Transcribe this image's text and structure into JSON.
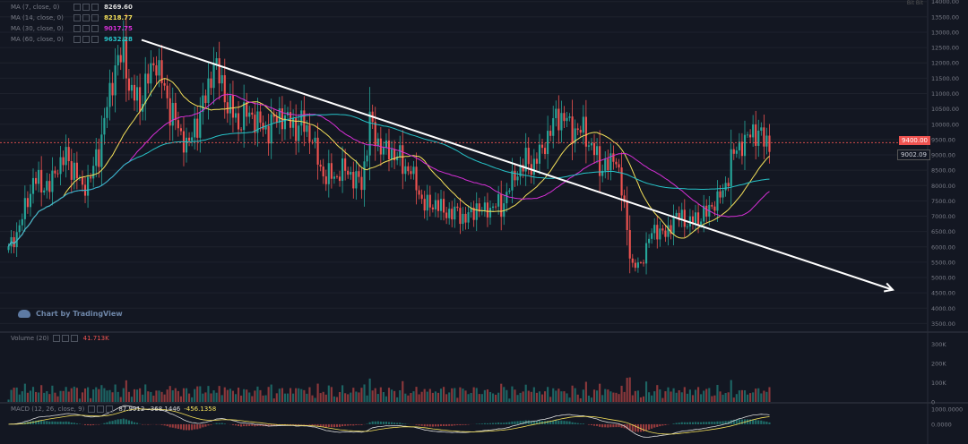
{
  "legend": {
    "ma7": {
      "label": "MA (7, close, 0)",
      "value": "8269.60",
      "color": "#dcdcdc"
    },
    "ma14": {
      "label": "MA (14, close, 0)",
      "value": "8218.77",
      "color": "#f5e15a"
    },
    "ma30": {
      "label": "MA (30, close, 0)",
      "value": "9017.75",
      "color": "#d62fd6"
    },
    "ma60": {
      "label": "MA (60, close, 0)",
      "value": "9632.28",
      "color": "#27c4c9"
    }
  },
  "volume_legend": {
    "label": "Volume (20)",
    "value": "41.713K",
    "color": "#ef5350"
  },
  "macd_legend": {
    "label": "MACD (12, 26, close, 9)",
    "v1": "87.9912",
    "v2": "-368.1446",
    "v3": "-456.1358"
  },
  "tv_label": "Chart by TradingView",
  "price_tags": {
    "current": "9400.00",
    "line": "9002.09"
  },
  "top_right": "Bit Bit",
  "colors": {
    "up": "#26a69a",
    "down": "#ef5350",
    "background": "#131722"
  },
  "chart_data": [
    {
      "type": "candlestick",
      "title": "",
      "y_ticks": [
        "3500.00",
        "4000.00",
        "4500.00",
        "5000.00",
        "5500.00",
        "6000.00",
        "6500.00",
        "7000.00",
        "7500.00",
        "8000.00",
        "8500.00",
        "9000.00",
        "9500.00",
        "10000.00",
        "10500.00",
        "11000.00",
        "11500.00",
        "12000.00",
        "12500.00",
        "13000.00",
        "13500.00",
        "14000.00"
      ],
      "ylim": [
        3250,
        14050
      ],
      "reference_price": 9400,
      "reference_price_2": 9002.09,
      "close_approx": [
        5900,
        6400,
        7300,
        8200,
        8100,
        7900,
        8600,
        8900,
        8500,
        8000,
        8300,
        9100,
        10500,
        11800,
        12400,
        11000,
        10800,
        11500,
        12000,
        11000,
        10300,
        9700,
        9400,
        10100,
        10800,
        11900,
        11300,
        10500,
        10100,
        10400,
        10100,
        9800,
        9900,
        10400,
        10200,
        9900,
        10000,
        9400,
        8500,
        8300,
        8400,
        8600,
        8200,
        8000,
        10000,
        9400,
        9200,
        9100,
        8700,
        8400,
        7700,
        7300,
        7500,
        7200,
        7100,
        7000,
        6900,
        7300,
        7200,
        7400,
        7300,
        7900,
        8400,
        8800,
        8700,
        9300,
        9800,
        10300,
        10000,
        9700,
        9900,
        9300,
        8700,
        8600,
        8900,
        7200,
        5300,
        5500,
        6300,
        6600,
        6300,
        6900,
        7000,
        6800,
        7000,
        7100,
        7400,
        7700,
        8800,
        9400,
        9600,
        9800,
        9400
      ],
      "trendline": {
        "start_price": 12750,
        "end_price": 4600,
        "arrow": true
      },
      "series": [
        {
          "name": "MA (7, close, 0)",
          "period": 7,
          "color": "#dcdcdc"
        },
        {
          "name": "MA (14, close, 0)",
          "period": 14,
          "color": "#f5e15a"
        },
        {
          "name": "MA (30, close, 0)",
          "period": 30,
          "color": "#d62fd6"
        },
        {
          "name": "MA (60, close, 0)",
          "period": 60,
          "color": "#27c4c9"
        }
      ]
    },
    {
      "type": "bar",
      "title": "",
      "y_ticks": [
        "0",
        "100K",
        "200K",
        "300K"
      ],
      "ylim": [
        0,
        340
      ]
    },
    {
      "type": "line",
      "title": "",
      "y_ticks": [
        "1000.0000",
        "0.0000"
      ],
      "ylim": [
        -1300,
        1350
      ]
    }
  ]
}
